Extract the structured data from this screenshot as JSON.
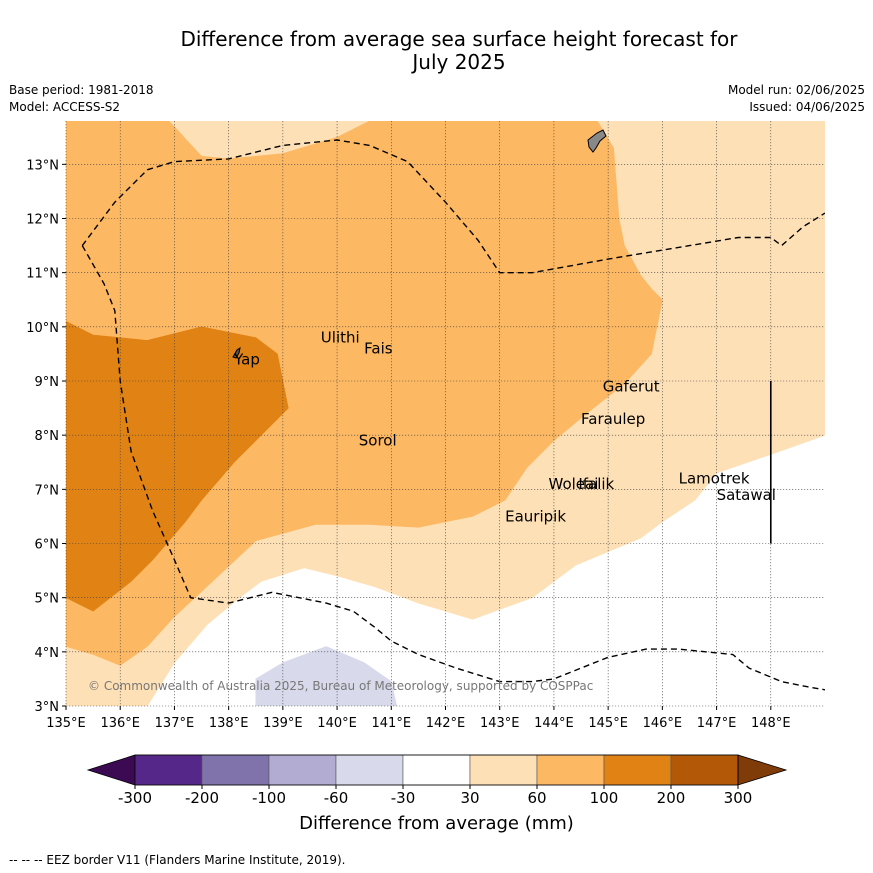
{
  "title_line1": "Difference from average sea surface height forecast for",
  "title_line2": "July 2025",
  "meta_left": [
    "Base period: 1981-2018",
    "Model: ACCESS-S2"
  ],
  "meta_right": [
    "Model run: 02/06/2025",
    "Issued: 04/06/2025"
  ],
  "copyright": "© Commonwealth of Australia 2025, Bureau of Meteorology, supported by COSPPac",
  "footer": "--  --  -- EEZ border V11 (Flanders Marine Institute, 2019).",
  "colorbar": {
    "label": "Difference from average (mm)",
    "ticks": [
      "-300",
      "-200",
      "-100",
      "-60",
      "-30",
      "30",
      "60",
      "100",
      "200",
      "300"
    ],
    "colors": [
      "#3b0a53",
      "#542788",
      "#8073ac",
      "#b2abd2",
      "#d8daeb",
      "#ffffff",
      "#fee0b6",
      "#fdb863",
      "#e08214",
      "#b35806",
      "#7f3b08"
    ]
  },
  "chart_data": {
    "type": "map",
    "xlim": [
      135,
      149
    ],
    "ylim": [
      3,
      13.8
    ],
    "x_ticks": [
      135,
      136,
      137,
      138,
      139,
      140,
      141,
      142,
      143,
      144,
      145,
      146,
      147,
      148
    ],
    "y_ticks": [
      3,
      4,
      5,
      6,
      7,
      8,
      9,
      10,
      11,
      12,
      13
    ],
    "x_tick_labels": [
      "135°E",
      "136°E",
      "137°E",
      "138°E",
      "139°E",
      "140°E",
      "141°E",
      "142°E",
      "143°E",
      "144°E",
      "145°E",
      "146°E",
      "147°E",
      "148°E"
    ],
    "y_tick_labels": [
      "3°N",
      "4°N",
      "5°N",
      "6°N",
      "7°N",
      "8°N",
      "9°N",
      "10°N",
      "11°N",
      "12°N",
      "13°N"
    ],
    "places": [
      {
        "name": "Ulithi",
        "lon": 139.7,
        "lat": 9.8
      },
      {
        "name": "Fais",
        "lon": 140.5,
        "lat": 9.6
      },
      {
        "name": "Yap",
        "lon": 138.1,
        "lat": 9.4
      },
      {
        "name": "Gaferut",
        "lon": 144.9,
        "lat": 8.9
      },
      {
        "name": "Faraulep",
        "lon": 144.5,
        "lat": 8.3
      },
      {
        "name": "Sorol",
        "lon": 140.4,
        "lat": 7.9
      },
      {
        "name": "Woleai",
        "lon": 143.9,
        "lat": 7.1
      },
      {
        "name": "Ifalik",
        "lon": 144.45,
        "lat": 7.1
      },
      {
        "name": "Lamotrek",
        "lon": 146.3,
        "lat": 7.2
      },
      {
        "name": "Satawal",
        "lon": 147.0,
        "lat": 6.9
      },
      {
        "name": "Eauripik",
        "lon": 143.1,
        "lat": 6.5
      }
    ],
    "regions": [
      {
        "level": "30 to 60 mm",
        "color": "#fee0b6",
        "polygon": [
          [
            135,
            13.8
          ],
          [
            149,
            13.8
          ],
          [
            149,
            8.0
          ],
          [
            148.3,
            7.75
          ],
          [
            147,
            7.3
          ],
          [
            146.6,
            6.8
          ],
          [
            146,
            6.4
          ],
          [
            145.6,
            6.1
          ],
          [
            144.4,
            5.6
          ],
          [
            143.6,
            5.0
          ],
          [
            142.5,
            4.6
          ],
          [
            141.5,
            4.9
          ],
          [
            140.7,
            5.2
          ],
          [
            140.0,
            5.4
          ],
          [
            139.4,
            5.55
          ],
          [
            138.6,
            5.3
          ],
          [
            138.2,
            5.0
          ],
          [
            137.6,
            4.5
          ],
          [
            137.0,
            3.8
          ],
          [
            136.5,
            3.0
          ],
          [
            135,
            3.0
          ]
        ]
      },
      {
        "level": "60 to 100 mm",
        "color": "#fdb863",
        "polygon": [
          [
            135,
            13.8
          ],
          [
            136.9,
            13.8
          ],
          [
            137.5,
            13.15
          ],
          [
            138.0,
            13.1
          ],
          [
            139.0,
            13.2
          ],
          [
            140.0,
            13.5
          ],
          [
            140.6,
            13.8
          ],
          [
            144.8,
            13.8
          ],
          [
            145.1,
            13.3
          ],
          [
            145.2,
            12.0
          ],
          [
            145.3,
            11.5
          ],
          [
            145.6,
            10.95
          ],
          [
            145.8,
            10.7
          ],
          [
            146.0,
            10.5
          ],
          [
            145.8,
            9.5
          ],
          [
            145.3,
            8.95
          ],
          [
            144.6,
            8.4
          ],
          [
            144.0,
            7.9
          ],
          [
            143.5,
            7.4
          ],
          [
            143.1,
            6.8
          ],
          [
            142.5,
            6.5
          ],
          [
            141.5,
            6.3
          ],
          [
            140.6,
            6.35
          ],
          [
            139.6,
            6.35
          ],
          [
            138.5,
            6.05
          ],
          [
            137.7,
            5.3
          ],
          [
            137.0,
            4.65
          ],
          [
            136.5,
            4.1
          ],
          [
            136.0,
            3.75
          ],
          [
            135.5,
            3.95
          ],
          [
            135,
            4.1
          ]
        ]
      },
      {
        "level": "100 to 200 mm",
        "color": "#e08214",
        "polygon": [
          [
            135,
            10.1
          ],
          [
            135.5,
            9.85
          ],
          [
            136.5,
            9.75
          ],
          [
            137.5,
            10.0
          ],
          [
            138.5,
            9.8
          ],
          [
            138.9,
            9.5
          ],
          [
            139.1,
            8.5
          ],
          [
            138.6,
            8.0
          ],
          [
            138.1,
            7.5
          ],
          [
            137.5,
            6.8
          ],
          [
            137.2,
            6.4
          ],
          [
            136.6,
            5.7
          ],
          [
            136.2,
            5.3
          ],
          [
            135.5,
            4.75
          ],
          [
            135,
            5.0
          ]
        ]
      },
      {
        "level": "-60 to -30 mm",
        "color": "#d8daeb",
        "polygon": [
          [
            138.5,
            3.0
          ],
          [
            138.5,
            3.5
          ],
          [
            139.0,
            3.8
          ],
          [
            139.8,
            4.1
          ],
          [
            140.5,
            3.8
          ],
          [
            141.0,
            3.45
          ],
          [
            141.1,
            3.0
          ]
        ]
      }
    ],
    "eez_segments": [
      [
        [
          135.3,
          11.5
        ],
        [
          135.9,
          12.3
        ],
        [
          136.5,
          12.9
        ],
        [
          137.0,
          13.05
        ],
        [
          138.0,
          13.1
        ],
        [
          139.0,
          13.35
        ],
        [
          140.0,
          13.45
        ],
        [
          140.6,
          13.35
        ],
        [
          141.3,
          13.05
        ],
        [
          142.0,
          12.3
        ],
        [
          142.6,
          11.6
        ],
        [
          143.0,
          11.0
        ],
        [
          143.6,
          11.0
        ],
        [
          145.0,
          11.25
        ],
        [
          146.5,
          11.5
        ],
        [
          147.4,
          11.65
        ],
        [
          148.0,
          11.65
        ],
        [
          148.2,
          11.5
        ],
        [
          148.6,
          11.85
        ],
        [
          149,
          12.1
        ]
      ],
      [
        [
          135.3,
          11.5
        ],
        [
          135.7,
          10.8
        ],
        [
          135.9,
          10.3
        ],
        [
          136.0,
          9.0
        ],
        [
          136.2,
          7.7
        ],
        [
          136.6,
          6.6
        ],
        [
          137.0,
          5.7
        ],
        [
          137.3,
          5.0
        ],
        [
          138.0,
          4.9
        ],
        [
          138.8,
          5.1
        ],
        [
          139.3,
          5.0
        ],
        [
          139.8,
          4.9
        ],
        [
          140.3,
          4.75
        ],
        [
          140.7,
          4.45
        ],
        [
          141.0,
          4.2
        ],
        [
          141.5,
          3.95
        ],
        [
          142.2,
          3.7
        ],
        [
          143.0,
          3.45
        ],
        [
          143.6,
          3.45
        ],
        [
          144.0,
          3.5
        ],
        [
          145.0,
          3.9
        ],
        [
          145.7,
          4.05
        ],
        [
          146.3,
          4.05
        ],
        [
          146.8,
          4.0
        ],
        [
          147.3,
          3.95
        ],
        [
          147.6,
          3.7
        ],
        [
          148.2,
          3.45
        ],
        [
          148.7,
          3.35
        ],
        [
          149,
          3.3
        ]
      ]
    ],
    "boundary_line": {
      "lon": 148.0,
      "lat_from": 6.0,
      "lat_to": 9.0
    }
  }
}
